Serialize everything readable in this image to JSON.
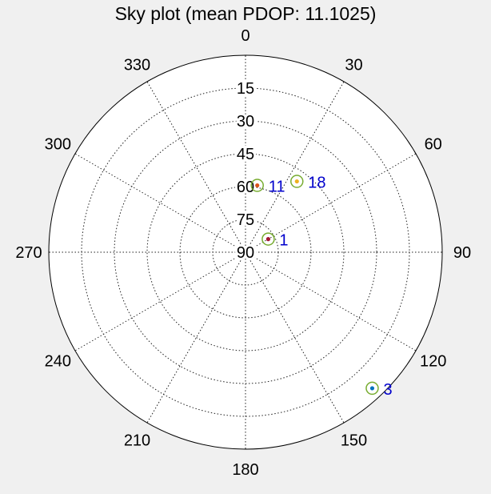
{
  "chart_data": {
    "type": "scatter",
    "projection": "polar-sky",
    "title": "Sky plot (mean PDOP: 11.1025)",
    "azimuth_labels": [
      "0",
      "30",
      "60",
      "90",
      "120",
      "150",
      "180",
      "210",
      "240",
      "270",
      "300",
      "330"
    ],
    "elevation_labels": [
      "15",
      "30",
      "45",
      "60",
      "75",
      "90"
    ],
    "satellites": [
      {
        "prn": "1",
        "azimuth": 60,
        "elevation": 78,
        "marker_color": "#a2142f"
      },
      {
        "prn": "11",
        "azimuth": 10,
        "elevation": 59,
        "marker_color": "#d95319"
      },
      {
        "prn": "18",
        "azimuth": 36,
        "elevation": 50,
        "marker_color": "#edb120"
      },
      {
        "prn": "3",
        "azimuth": 137,
        "elevation": 5,
        "marker_color": "#0072bd"
      }
    ],
    "grid": true,
    "ring_color": "#77ac30",
    "label_color": "#0000cc"
  }
}
